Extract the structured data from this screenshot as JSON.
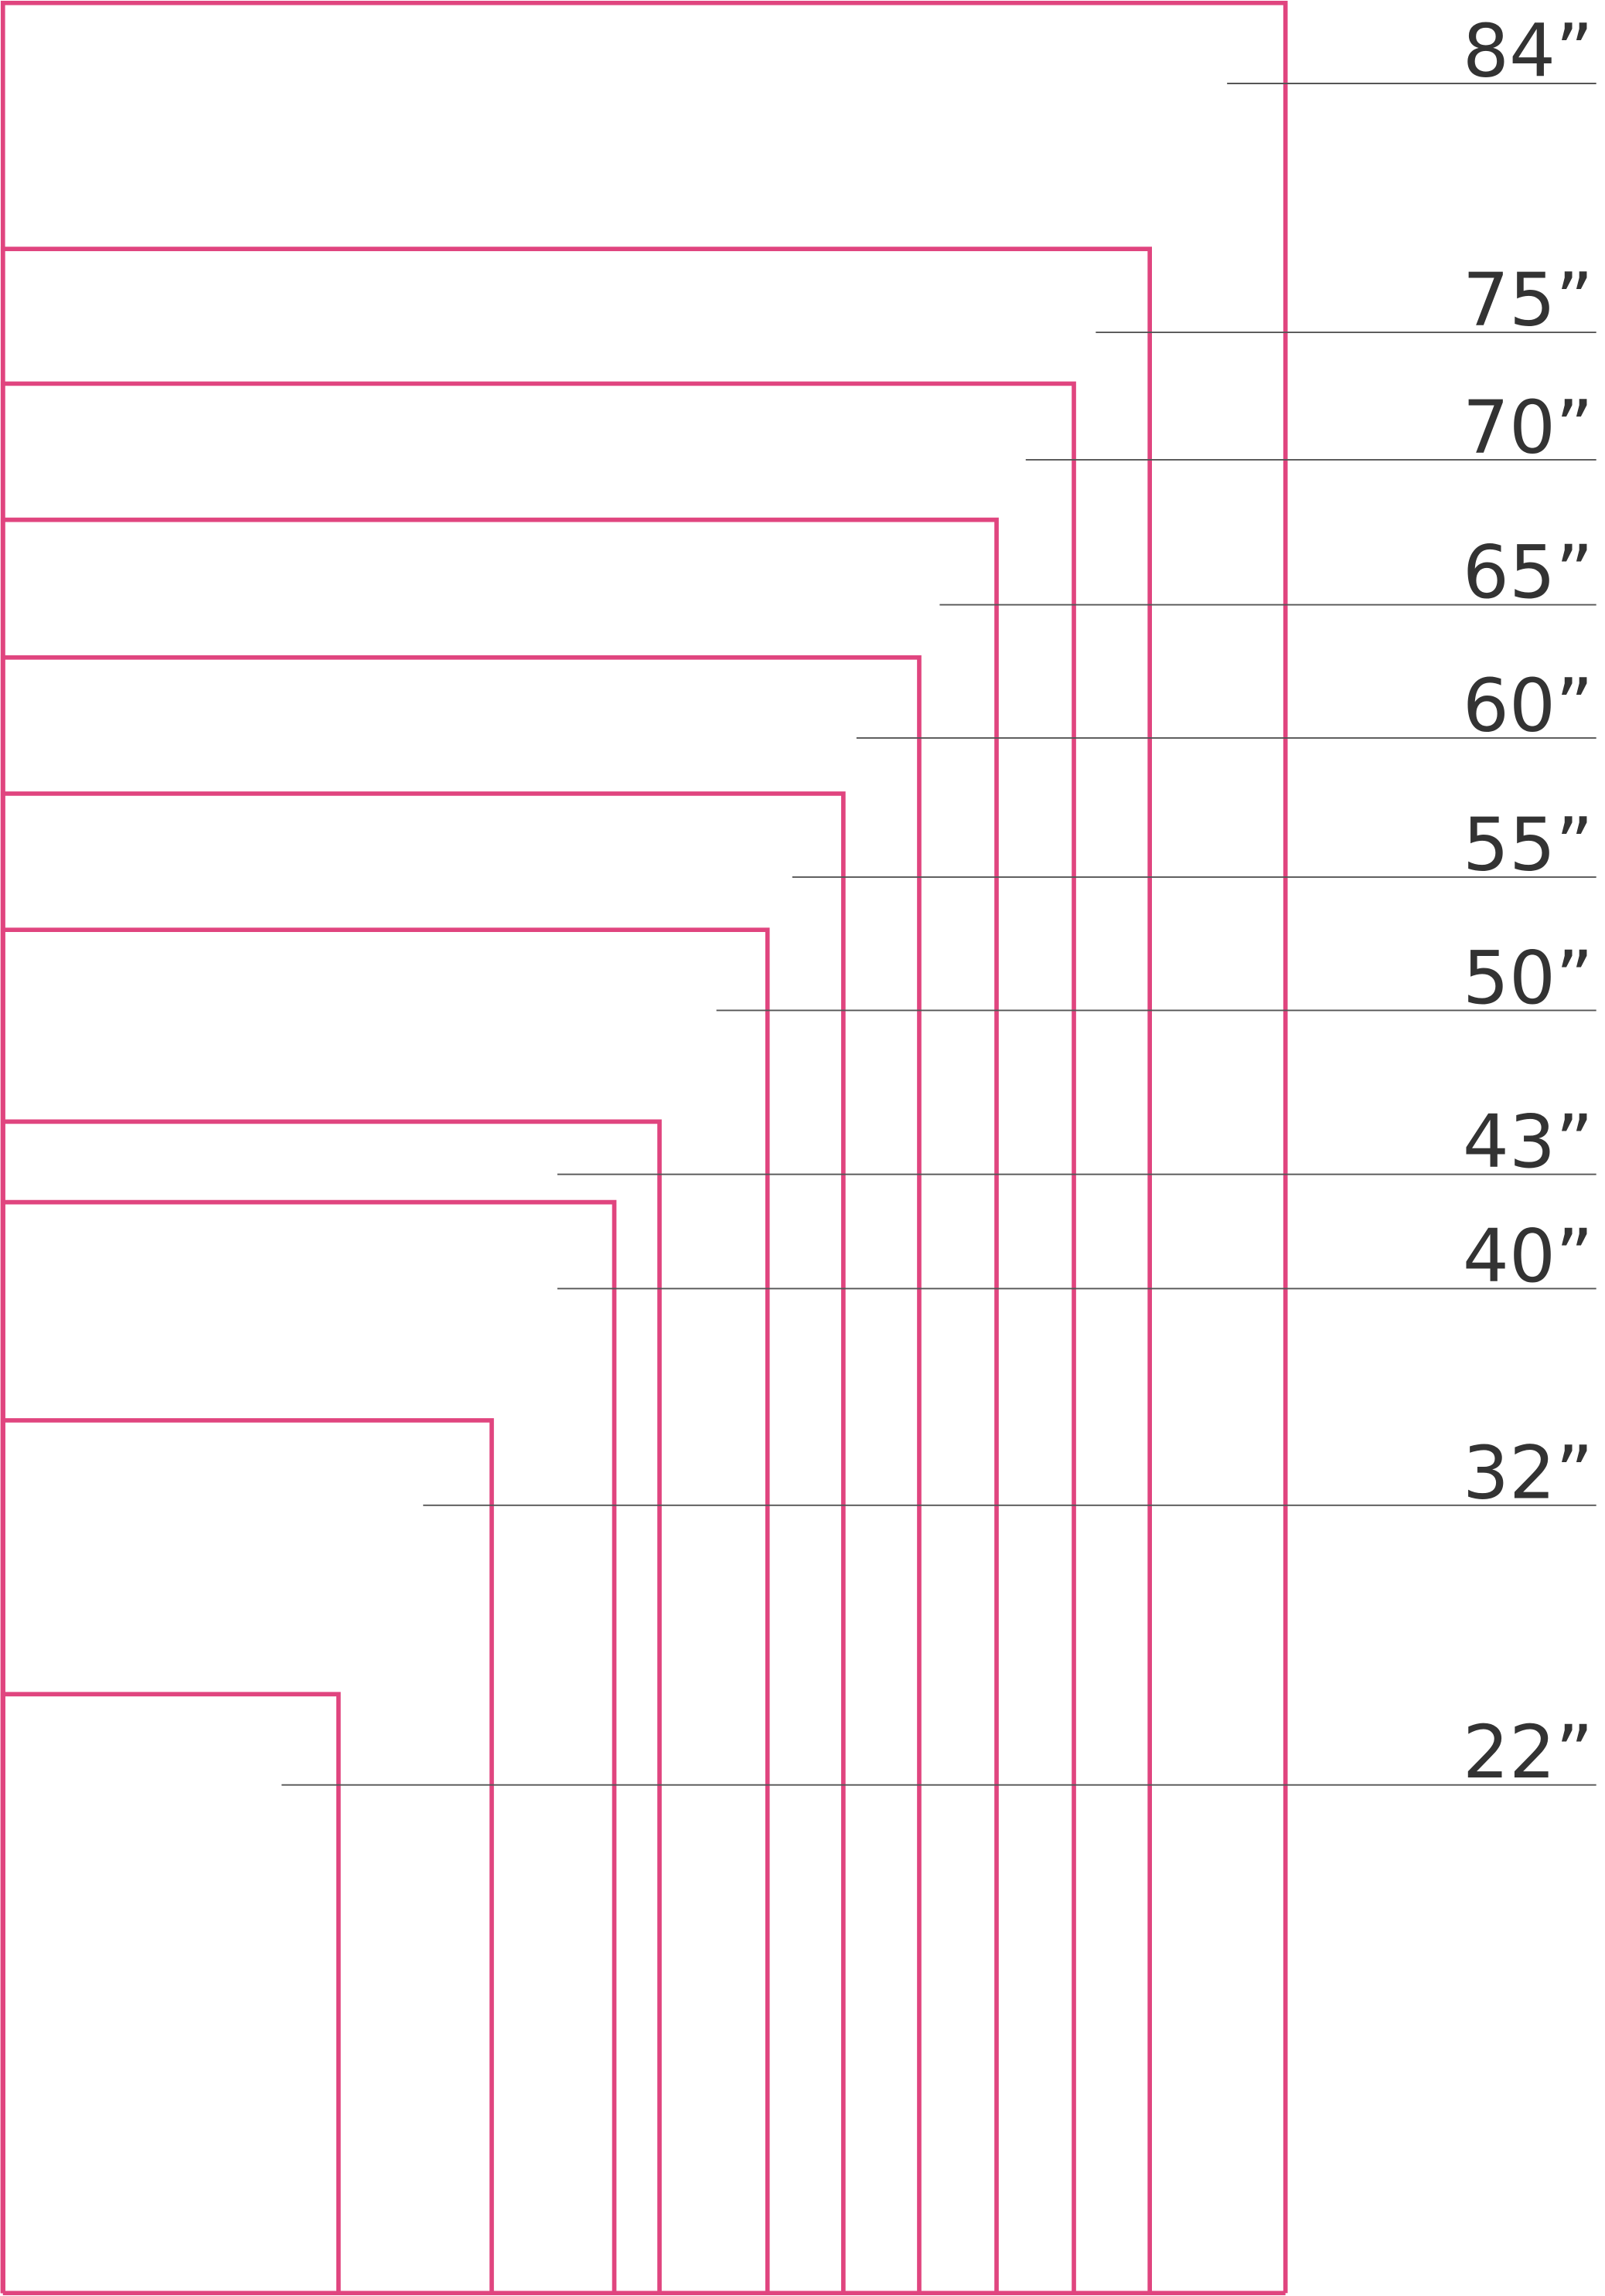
{
  "labels": [
    "84”",
    "75”",
    "70”",
    "65”",
    "60”",
    "55”",
    "50”",
    "43”",
    "40”",
    "32”",
    "22”"
  ]
}
